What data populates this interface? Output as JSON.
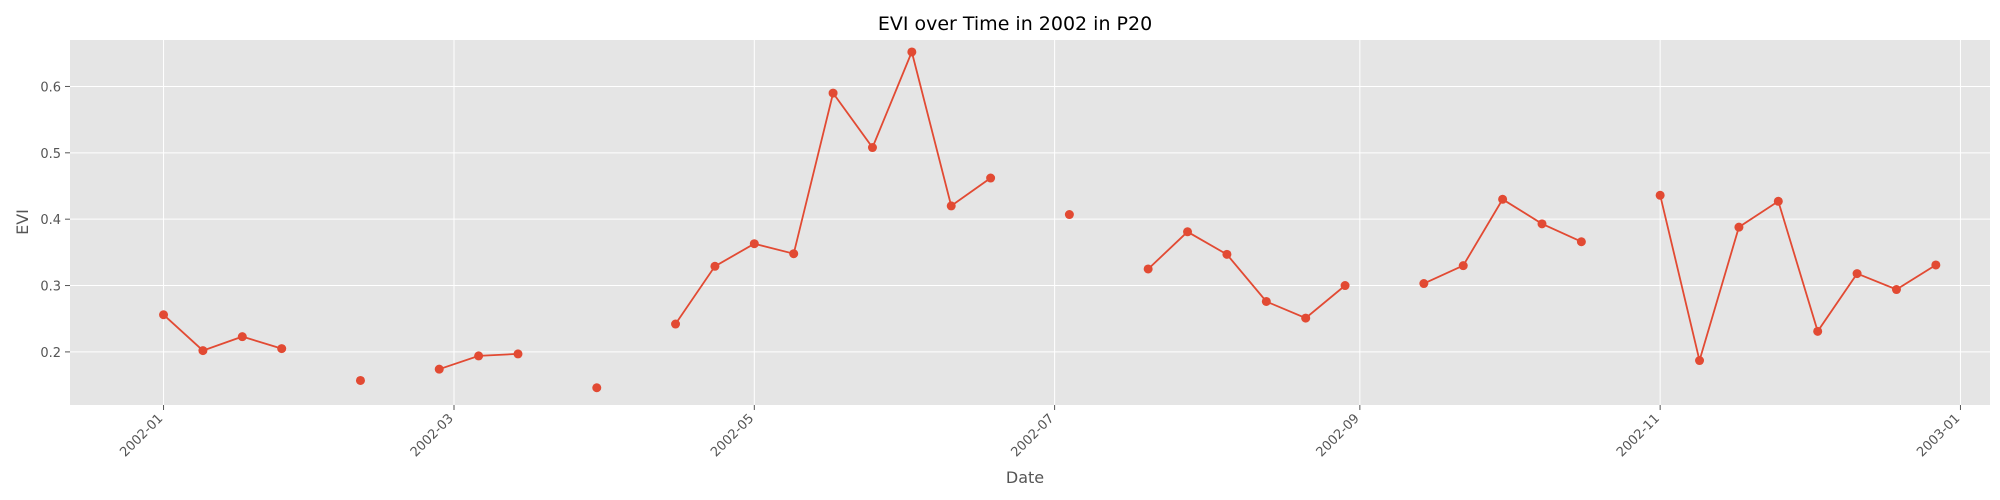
{
  "chart_data": {
    "type": "line",
    "title": "EVI over Time in 2002 in P20",
    "xlabel": "Date",
    "ylabel": "EVI",
    "x_ticks": [
      "2002-01",
      "2002-03",
      "2002-05",
      "2002-07",
      "2002-09",
      "2002-11",
      "2003-01"
    ],
    "y_ticks": [
      "0.2",
      "0.3",
      "0.4",
      "0.5",
      "0.6"
    ],
    "xlim": [
      "2001-12-13",
      "2003-01-07"
    ],
    "ylim": [
      0.12,
      0.67
    ],
    "grid": true,
    "series": [
      {
        "color": "#E24A33",
        "points": [
          {
            "x": "2002-01-01",
            "y": 0.256
          },
          {
            "x": "2002-01-09",
            "y": 0.202
          },
          {
            "x": "2002-01-17",
            "y": 0.223
          },
          {
            "x": "2002-01-25",
            "y": 0.205
          },
          {
            "x": "2002-02-10",
            "y": null
          },
          {
            "x": "2002-02-10",
            "y": 0.157
          },
          {
            "x": "2002-02-18",
            "y": null
          },
          {
            "x": "2002-02-26",
            "y": 0.174
          },
          {
            "x": "2002-03-06",
            "y": 0.194
          },
          {
            "x": "2002-03-14",
            "y": 0.197
          },
          {
            "x": "2002-03-22",
            "y": null
          },
          {
            "x": "2002-03-30",
            "y": 0.146
          },
          {
            "x": "2002-04-07",
            "y": null
          },
          {
            "x": "2002-04-15",
            "y": 0.242
          },
          {
            "x": "2002-04-23",
            "y": 0.329
          },
          {
            "x": "2002-05-01",
            "y": 0.363
          },
          {
            "x": "2002-05-09",
            "y": 0.348
          },
          {
            "x": "2002-05-17",
            "y": 0.59
          },
          {
            "x": "2002-05-25",
            "y": 0.508
          },
          {
            "x": "2002-06-02",
            "y": 0.652
          },
          {
            "x": "2002-06-10",
            "y": 0.42
          },
          {
            "x": "2002-06-18",
            "y": 0.462
          },
          {
            "x": "2002-06-26",
            "y": null
          },
          {
            "x": "2002-07-04",
            "y": 0.407
          },
          {
            "x": "2002-07-12",
            "y": null
          },
          {
            "x": "2002-07-20",
            "y": 0.325
          },
          {
            "x": "2002-07-28",
            "y": 0.381
          },
          {
            "x": "2002-08-05",
            "y": 0.347
          },
          {
            "x": "2002-08-13",
            "y": 0.276
          },
          {
            "x": "2002-08-21",
            "y": 0.251
          },
          {
            "x": "2002-08-29",
            "y": 0.3
          },
          {
            "x": "2002-09-06",
            "y": null
          },
          {
            "x": "2002-09-14",
            "y": 0.303
          },
          {
            "x": "2002-09-22",
            "y": 0.33
          },
          {
            "x": "2002-09-30",
            "y": 0.43
          },
          {
            "x": "2002-10-08",
            "y": 0.393
          },
          {
            "x": "2002-10-16",
            "y": 0.366
          },
          {
            "x": "2002-10-24",
            "y": null
          },
          {
            "x": "2002-11-01",
            "y": 0.436
          },
          {
            "x": "2002-11-09",
            "y": 0.187
          },
          {
            "x": "2002-11-17",
            "y": 0.388
          },
          {
            "x": "2002-11-25",
            "y": 0.427
          },
          {
            "x": "2002-12-03",
            "y": 0.231
          },
          {
            "x": "2002-12-11",
            "y": 0.318
          },
          {
            "x": "2002-12-19",
            "y": 0.294
          },
          {
            "x": "2002-12-27",
            "y": 0.331
          }
        ]
      }
    ]
  },
  "colors": {
    "plot_background": "#E5E5E5",
    "grid": "#FFFFFF",
    "series": "#E24A33",
    "tick_text": "#555555",
    "title_text": "#000000"
  }
}
